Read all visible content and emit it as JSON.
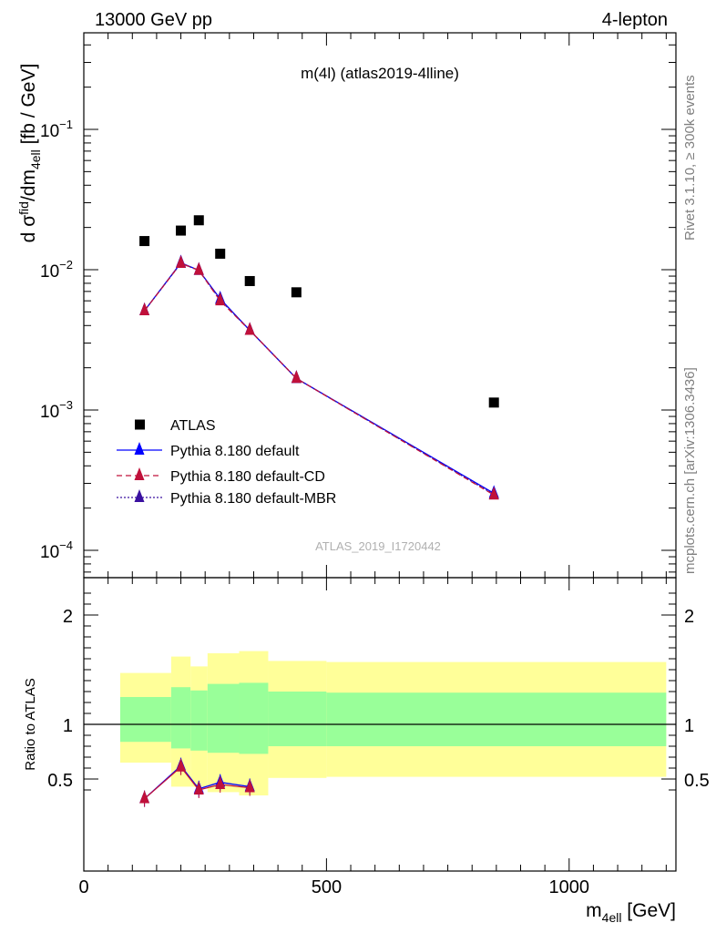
{
  "header": {
    "left": "13000 GeV pp",
    "right": "4-lepton"
  },
  "side_labels": {
    "rivet": "Rivet 3.1.10, ≥ 300k events",
    "mcplots": "mcplots.cern.ch [arXiv:1306.3436]"
  },
  "chart_data": [
    {
      "type": "scatter",
      "panel": "main",
      "title": "m(4l) (atlas2019-4lline)",
      "watermark": "ATLAS_2019_I1720442",
      "ylabel": {
        "p1": "d σ",
        "p1_sup": "fid",
        "p2": "/dm",
        "p2_sub": "4ell",
        "p3": " [fb / GeV]"
      },
      "yscale": "log",
      "ylim": [
        7e-05,
        0.6
      ],
      "xlim": [
        0,
        1220
      ],
      "y_tick_labels": [
        {
          "base": "10",
          "exp": "−1",
          "value": 0.1
        },
        {
          "base": "10",
          "exp": "−2",
          "value": 0.01
        },
        {
          "base": "10",
          "exp": "−3",
          "value": 0.001
        },
        {
          "base": "10",
          "exp": "−4",
          "value": 0.0001
        }
      ],
      "legend_position": "bottom-left",
      "series": [
        {
          "name": "ATLAS",
          "marker": "square",
          "color": "#000000",
          "x": [
            125,
            200,
            237,
            281,
            342,
            438,
            845
          ],
          "y": [
            0.016,
            0.019,
            0.0225,
            0.013,
            0.0083,
            0.0069,
            0.00113
          ]
        },
        {
          "name": "Pythia 8.180 default",
          "marker": "triangle",
          "line": "solid",
          "color": "#0000ff",
          "x": [
            125,
            200,
            237,
            281,
            342,
            438,
            845
          ],
          "y": [
            0.0051,
            0.0112,
            0.0099,
            0.0062,
            0.0037,
            0.00168,
            0.000255
          ]
        },
        {
          "name": "Pythia 8.180 default-CD",
          "marker": "triangle",
          "line": "dashed",
          "color": "#c0103a",
          "x": [
            125,
            200,
            237,
            281,
            342,
            438,
            845
          ],
          "y": [
            0.0051,
            0.0111,
            0.0099,
            0.006,
            0.0037,
            0.00168,
            0.000248
          ]
        },
        {
          "name": "Pythia 8.180 default-MBR",
          "marker": "triangle",
          "line": "dotted",
          "color": "#3a10a0",
          "x": [
            125,
            200,
            237,
            281,
            342,
            438,
            845
          ],
          "y": [
            0.0051,
            0.0111,
            0.0099,
            0.0061,
            0.0037,
            0.00168,
            0.00025
          ]
        }
      ]
    },
    {
      "type": "line",
      "panel": "ratio",
      "ylabel": "Ratio to ATLAS",
      "xlabel": {
        "main": "m",
        "sub": "4ell",
        "unit": " [GeV]"
      },
      "xlim": [
        0,
        1220
      ],
      "ylim": [
        0.35,
        2.3
      ],
      "x_ticks": [
        0,
        500,
        1000
      ],
      "x_tick_labels": [
        "0",
        "500",
        "1000"
      ],
      "y_ticks": [
        0.5,
        1,
        2
      ],
      "y_tick_labels": [
        "0.5",
        "1",
        "2"
      ],
      "bins": [
        {
          "x0": 75,
          "x1": 180,
          "outer": [
            0.65,
            1.47
          ],
          "inner": [
            0.84,
            1.25
          ]
        },
        {
          "x0": 180,
          "x1": 220,
          "outer": [
            0.43,
            1.62
          ],
          "inner": [
            0.78,
            1.34
          ]
        },
        {
          "x0": 220,
          "x1": 255,
          "outer": [
            0.43,
            1.53
          ],
          "inner": [
            0.76,
            1.31
          ]
        },
        {
          "x0": 255,
          "x1": 320,
          "outer": [
            0.38,
            1.65
          ],
          "inner": [
            0.74,
            1.37
          ]
        },
        {
          "x0": 320,
          "x1": 380,
          "outer": [
            0.35,
            1.67
          ],
          "inner": [
            0.73,
            1.38
          ]
        },
        {
          "x0": 380,
          "x1": 500,
          "outer": [
            0.51,
            1.58
          ],
          "inner": [
            0.8,
            1.3
          ]
        },
        {
          "x0": 500,
          "x1": 1200,
          "outer": [
            0.52,
            1.57
          ],
          "inner": [
            0.8,
            1.29
          ]
        }
      ],
      "reference": 1,
      "series": [
        {
          "name": "Pythia 8.180 default",
          "color": "#0000ff",
          "x": [
            125,
            200,
            237,
            281,
            342
          ],
          "y": [
            0.32,
            0.62,
            0.41,
            0.47,
            0.43
          ]
        },
        {
          "name": "Pythia 8.180 default-CD",
          "color": "#c0103a",
          "x": [
            125,
            200,
            237,
            281,
            342
          ],
          "y": [
            0.32,
            0.61,
            0.4,
            0.45,
            0.42
          ]
        }
      ]
    }
  ]
}
